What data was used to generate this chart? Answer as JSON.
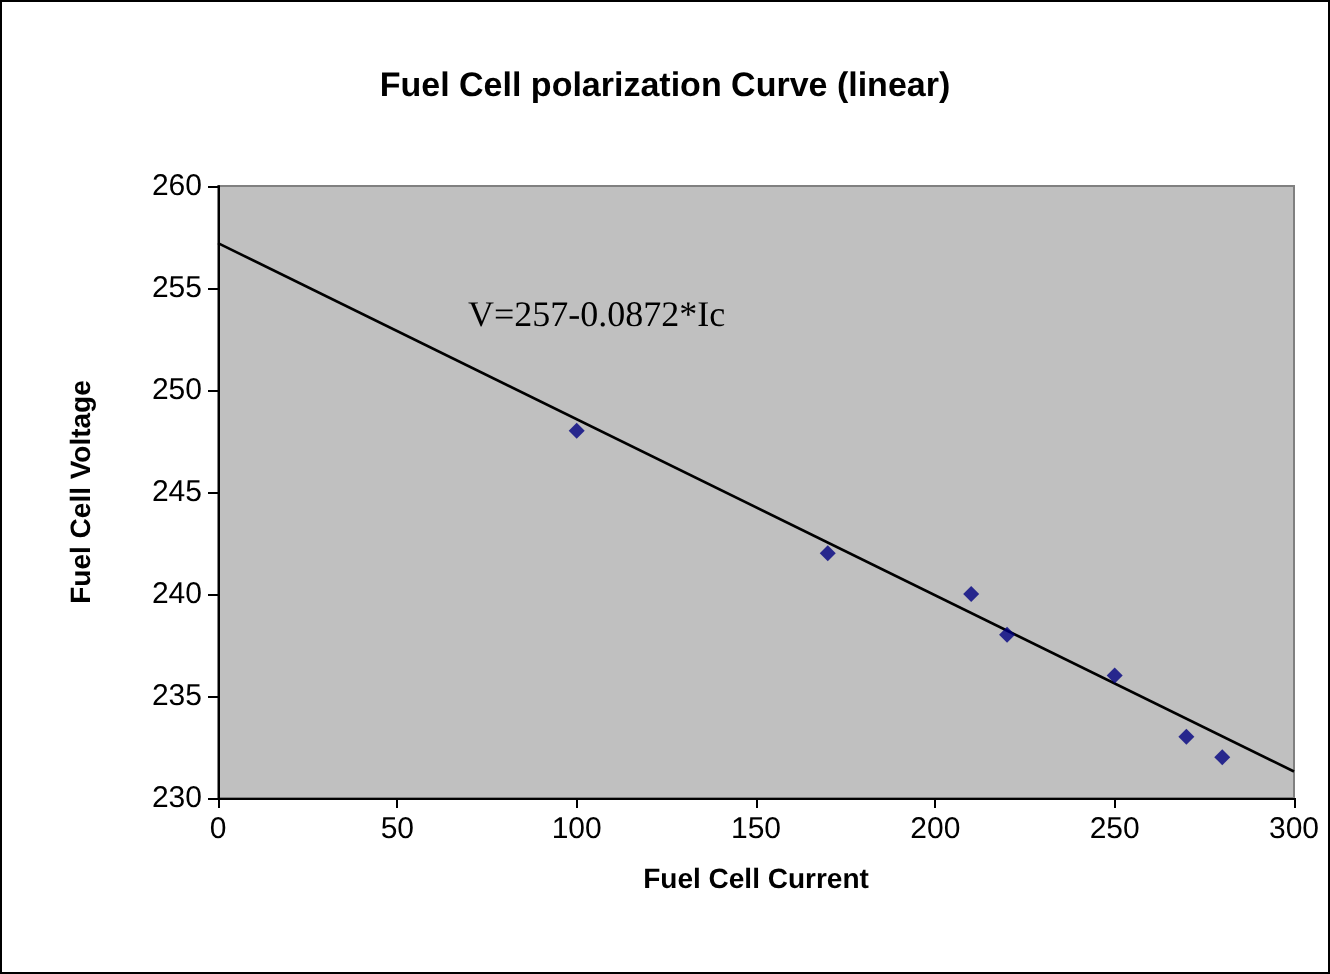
{
  "chart_data": {
    "type": "scatter",
    "title": "Fuel Cell polarization Curve (linear)",
    "xlabel": "Fuel Cell Current",
    "ylabel": "Fuel Cell Voltage",
    "x": [
      100,
      170,
      210,
      220,
      250,
      270,
      280
    ],
    "series": [
      {
        "color": "#000080",
        "marker": "diamond",
        "values": [
          248,
          242,
          240,
          238,
          236,
          233,
          232
        ]
      },
      {
        "type": "line",
        "color": "#000000",
        "marker": "none",
        "x": [
          0,
          300
        ],
        "values": [
          257.2,
          231.3
        ]
      }
    ],
    "annotations": [
      "V=257-0.0872*Ic"
    ],
    "xlim": [
      0,
      300
    ],
    "xticks": [
      0,
      50,
      100,
      150,
      200,
      250,
      300
    ],
    "ylim": [
      230,
      260
    ],
    "yticks": [
      230,
      235,
      240,
      245,
      250,
      255,
      260
    ],
    "grid": false
  }
}
